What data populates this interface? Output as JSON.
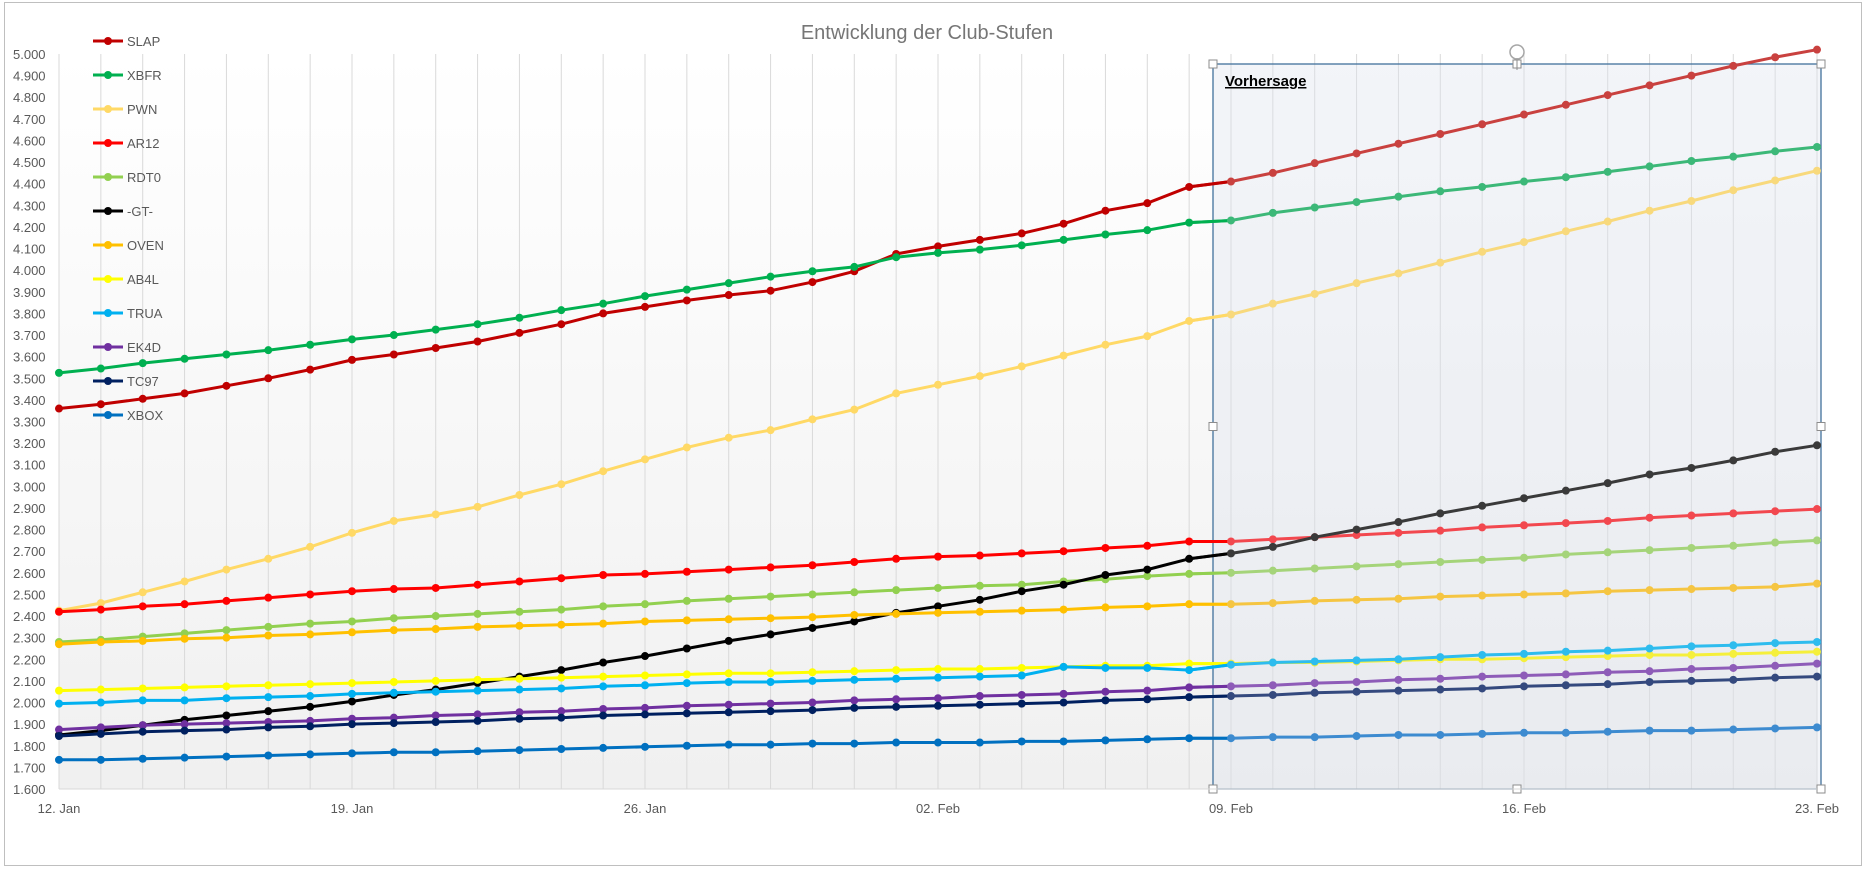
{
  "chart_data": {
    "type": "line",
    "title": "Entwicklung der Club-Stufen",
    "xlabel": "",
    "ylabel": "",
    "ylim": [
      1600,
      5000
    ],
    "y_ticks": [
      1600,
      1700,
      1800,
      1900,
      2000,
      2100,
      2200,
      2300,
      2400,
      2500,
      2600,
      2700,
      2800,
      2900,
      3000,
      3100,
      3200,
      3300,
      3400,
      3500,
      3600,
      3700,
      3800,
      3900,
      4000,
      4100,
      4200,
      4300,
      4400,
      4500,
      4600,
      4700,
      4800,
      4900,
      5000
    ],
    "y_tick_labels": [
      "1.600",
      "1.700",
      "1.800",
      "1.900",
      "2.000",
      "2.100",
      "2.200",
      "2.300",
      "2.400",
      "2.500",
      "2.600",
      "2.700",
      "2.800",
      "2.900",
      "3.000",
      "3.100",
      "3.200",
      "3.300",
      "3.400",
      "3.500",
      "3.600",
      "3.700",
      "3.800",
      "3.900",
      "4.000",
      "4.100",
      "4.200",
      "4.300",
      "4.400",
      "4.500",
      "4.600",
      "4.700",
      "4.800",
      "4.900",
      "5.000"
    ],
    "x_start_label": "12. Jan",
    "x_day_count": 43,
    "x_tick_days": [
      0,
      7,
      14,
      21,
      28,
      35,
      42
    ],
    "x_tick_labels": [
      "12. Jan",
      "19. Jan",
      "26. Jan",
      "02. Feb",
      "09. Feb",
      "16. Feb",
      "23. Feb"
    ],
    "grid": "vertical",
    "legend_position": "top-left",
    "forecast_start_day": 28,
    "annotation": "Vorhersage",
    "series": [
      {
        "name": "SLAP",
        "color": "#c00000",
        "forecast_color": "#c9413f",
        "values": [
          3360,
          3380,
          3405,
          3430,
          3465,
          3500,
          3540,
          3585,
          3610,
          3640,
          3670,
          3710,
          3750,
          3800,
          3830,
          3860,
          3885,
          3905,
          3945,
          3995,
          4075,
          4110,
          4140,
          4170,
          4215,
          4275,
          4310,
          4385,
          4410,
          4450,
          4495,
          4540,
          4585,
          4630,
          4675,
          4720,
          4765,
          4810,
          4855,
          4900,
          4945,
          4985,
          5020
        ]
      },
      {
        "name": "XBFR",
        "color": "#00b050",
        "forecast_color": "#3cb878",
        "values": [
          3525,
          3545,
          3570,
          3590,
          3610,
          3630,
          3655,
          3680,
          3700,
          3725,
          3750,
          3780,
          3815,
          3845,
          3880,
          3910,
          3940,
          3970,
          3995,
          4015,
          4060,
          4080,
          4095,
          4115,
          4140,
          4165,
          4185,
          4220,
          4230,
          4265,
          4290,
          4315,
          4340,
          4365,
          4385,
          4410,
          4430,
          4455,
          4480,
          4505,
          4525,
          4550,
          4570
        ]
      },
      {
        "name": "PWN",
        "color": "#ffd966",
        "forecast_color": "#f8d97c",
        "values": [
          2425,
          2460,
          2510,
          2560,
          2615,
          2665,
          2720,
          2785,
          2840,
          2870,
          2905,
          2960,
          3010,
          3070,
          3125,
          3180,
          3225,
          3260,
          3310,
          3355,
          3430,
          3470,
          3510,
          3555,
          3605,
          3655,
          3695,
          3765,
          3795,
          3845,
          3890,
          3940,
          3985,
          4035,
          4085,
          4130,
          4180,
          4225,
          4275,
          4320,
          4370,
          4415,
          4460
        ]
      },
      {
        "name": "AR12",
        "color": "#ff0000",
        "forecast_color": "#f2484f",
        "values": [
          2420,
          2430,
          2445,
          2455,
          2470,
          2485,
          2500,
          2515,
          2525,
          2530,
          2545,
          2560,
          2575,
          2590,
          2595,
          2605,
          2615,
          2625,
          2635,
          2650,
          2665,
          2675,
          2680,
          2690,
          2700,
          2715,
          2725,
          2745,
          2745,
          2755,
          2765,
          2775,
          2785,
          2795,
          2810,
          2820,
          2830,
          2840,
          2855,
          2865,
          2875,
          2885,
          2895
        ]
      },
      {
        "name": "RDT0",
        "color": "#92d050",
        "forecast_color": "#a5d47a",
        "values": [
          2280,
          2290,
          2305,
          2320,
          2335,
          2350,
          2365,
          2375,
          2390,
          2400,
          2410,
          2420,
          2430,
          2445,
          2455,
          2470,
          2480,
          2490,
          2500,
          2510,
          2520,
          2530,
          2540,
          2545,
          2560,
          2570,
          2585,
          2595,
          2600,
          2610,
          2620,
          2630,
          2640,
          2650,
          2660,
          2670,
          2685,
          2695,
          2705,
          2715,
          2725,
          2740,
          2750
        ]
      },
      {
        "name": "-GT-",
        "color": "#000000",
        "forecast_color": "#3a3a3a",
        "values": [
          1850,
          1870,
          1895,
          1920,
          1940,
          1960,
          1980,
          2005,
          2035,
          2060,
          2090,
          2120,
          2150,
          2185,
          2215,
          2250,
          2285,
          2315,
          2345,
          2375,
          2415,
          2445,
          2475,
          2515,
          2545,
          2590,
          2615,
          2665,
          2690,
          2720,
          2765,
          2800,
          2835,
          2875,
          2910,
          2945,
          2980,
          3015,
          3055,
          3085,
          3120,
          3160,
          3190
        ]
      },
      {
        "name": "OVEN",
        "color": "#ffc000",
        "forecast_color": "#f5c542",
        "values": [
          2270,
          2280,
          2285,
          2295,
          2300,
          2310,
          2315,
          2325,
          2335,
          2340,
          2350,
          2355,
          2360,
          2365,
          2375,
          2380,
          2385,
          2390,
          2395,
          2405,
          2410,
          2415,
          2420,
          2425,
          2430,
          2440,
          2445,
          2455,
          2455,
          2460,
          2470,
          2475,
          2480,
          2490,
          2495,
          2500,
          2505,
          2515,
          2520,
          2525,
          2530,
          2535,
          2550
        ]
      },
      {
        "name": "AB4L",
        "color": "#ffff00",
        "forecast_color": "#f5ef3b",
        "values": [
          2055,
          2060,
          2065,
          2070,
          2075,
          2080,
          2085,
          2090,
          2095,
          2100,
          2105,
          2110,
          2115,
          2120,
          2125,
          2130,
          2135,
          2135,
          2140,
          2145,
          2150,
          2155,
          2155,
          2160,
          2165,
          2170,
          2170,
          2180,
          2180,
          2185,
          2185,
          2190,
          2195,
          2200,
          2200,
          2205,
          2210,
          2215,
          2220,
          2220,
          2225,
          2230,
          2235
        ]
      },
      {
        "name": "TRUA",
        "color": "#00b0f0",
        "forecast_color": "#2ebcee",
        "values": [
          1995,
          2000,
          2010,
          2010,
          2020,
          2025,
          2030,
          2040,
          2045,
          2050,
          2055,
          2060,
          2065,
          2075,
          2080,
          2090,
          2095,
          2095,
          2100,
          2105,
          2110,
          2115,
          2120,
          2125,
          2165,
          2160,
          2160,
          2150,
          2175,
          2185,
          2190,
          2195,
          2200,
          2210,
          2220,
          2225,
          2235,
          2240,
          2250,
          2260,
          2265,
          2275,
          2280
        ]
      },
      {
        "name": "EK4D",
        "color": "#7030a0",
        "forecast_color": "#8e5cb8",
        "values": [
          1875,
          1885,
          1895,
          1900,
          1905,
          1910,
          1915,
          1925,
          1930,
          1940,
          1945,
          1955,
          1960,
          1970,
          1975,
          1985,
          1990,
          1995,
          2000,
          2010,
          2015,
          2020,
          2030,
          2035,
          2040,
          2050,
          2055,
          2070,
          2075,
          2080,
          2090,
          2095,
          2105,
          2110,
          2120,
          2125,
          2130,
          2140,
          2145,
          2155,
          2160,
          2170,
          2180
        ]
      },
      {
        "name": "TC97",
        "color": "#002060",
        "forecast_color": "#34497e",
        "values": [
          1845,
          1855,
          1865,
          1870,
          1875,
          1885,
          1890,
          1900,
          1905,
          1910,
          1915,
          1925,
          1930,
          1940,
          1945,
          1950,
          1955,
          1960,
          1965,
          1975,
          1980,
          1985,
          1990,
          1995,
          2000,
          2010,
          2015,
          2025,
          2030,
          2035,
          2045,
          2050,
          2055,
          2060,
          2065,
          2075,
          2080,
          2085,
          2095,
          2100,
          2105,
          2115,
          2120
        ]
      },
      {
        "name": "XBOX",
        "color": "#0070c0",
        "forecast_color": "#3d8bd0",
        "values": [
          1735,
          1735,
          1740,
          1745,
          1750,
          1755,
          1760,
          1765,
          1770,
          1770,
          1775,
          1780,
          1785,
          1790,
          1795,
          1800,
          1805,
          1805,
          1810,
          1810,
          1815,
          1815,
          1815,
          1820,
          1820,
          1825,
          1830,
          1835,
          1835,
          1840,
          1840,
          1845,
          1850,
          1850,
          1855,
          1860,
          1860,
          1865,
          1870,
          1870,
          1875,
          1880,
          1885
        ]
      }
    ]
  }
}
